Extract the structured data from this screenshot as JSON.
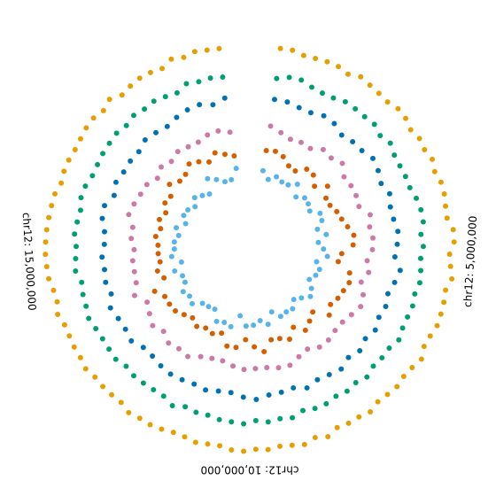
{
  "chart_data": {
    "type": "scatter",
    "layout": "circular",
    "chromosome": "chr12",
    "position_ticks": [
      {
        "label": "chr12: 5,000,000",
        "position": 5000000
      },
      {
        "label": "chr12: 15,000,000",
        "position": 15000000
      },
      {
        "label": "chr12: 10,000,000",
        "position": 10000000
      }
    ],
    "position_range": [
      0,
      20000000
    ],
    "track_gap_positions": [
      0,
      20000000
    ],
    "tracks": [
      {
        "color": "#e69f00",
        "ring": 1,
        "point_count": 100
      },
      {
        "color": "#009e73",
        "ring": 2,
        "point_count": 86
      },
      {
        "color": "#0072b2",
        "ring": 3,
        "point_count": 70
      },
      {
        "color": "#cc79a7",
        "ring": 4,
        "point_count": 64
      },
      {
        "color": "#d55e00",
        "ring": 5,
        "point_count": 66
      },
      {
        "color": "#56b4e9",
        "ring": 6,
        "point_count": 64
      }
    ]
  }
}
